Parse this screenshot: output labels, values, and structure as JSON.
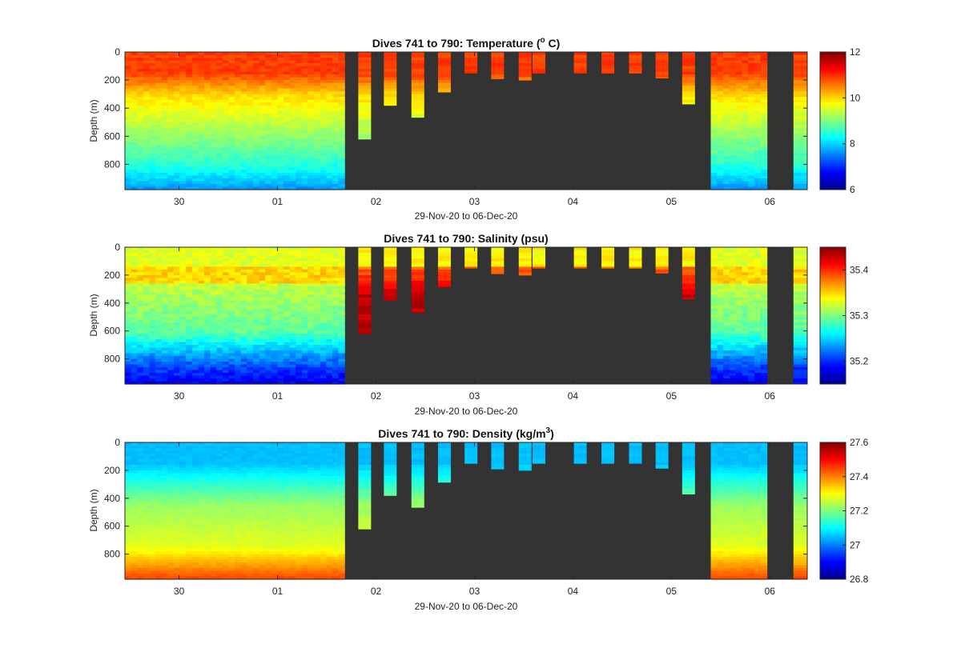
{
  "chart_data": [
    {
      "type": "heatmap",
      "variable": "temperature",
      "title": "Dives 741 to 790: Temperature (",
      "title_sup": "o",
      "title_end": " C)",
      "xlabel": "29-Nov-20 to 06-Dec-20",
      "ylabel": "Depth (m)",
      "xlim": [
        29.45,
        36.38
      ],
      "ylim": [
        0,
        980
      ],
      "x_tick_values": [
        30,
        31,
        32,
        33,
        34,
        35,
        36
      ],
      "x_tick_labels": [
        "30",
        "01",
        "02",
        "03",
        "04",
        "05",
        "06"
      ],
      "y_ticks": [
        "0",
        "200",
        "400",
        "600",
        "800"
      ],
      "y_tick_values": [
        0,
        200,
        400,
        600,
        800
      ],
      "colorbar": {
        "min": 6,
        "max": 12,
        "tick_values": [
          6,
          8,
          10,
          12
        ],
        "ticks": [
          "6",
          "8",
          "10",
          "12"
        ]
      }
    },
    {
      "type": "heatmap",
      "variable": "salinity",
      "title": "Dives 741 to 790: Salinity (psu)",
      "xlabel": "29-Nov-20 to 06-Dec-20",
      "ylabel": "Depth (m)",
      "xlim": [
        29.45,
        36.38
      ],
      "ylim": [
        0,
        980
      ],
      "x_tick_values": [
        30,
        31,
        32,
        33,
        34,
        35,
        36
      ],
      "x_tick_labels": [
        "30",
        "01",
        "02",
        "03",
        "04",
        "05",
        "06"
      ],
      "y_ticks": [
        "0",
        "200",
        "400",
        "600",
        "800"
      ],
      "y_tick_values": [
        0,
        200,
        400,
        600,
        800
      ],
      "colorbar": {
        "min": 35.15,
        "max": 35.45,
        "tick_values": [
          35.2,
          35.3,
          35.4
        ],
        "ticks": [
          "35.2",
          "35.3",
          "35.4"
        ]
      }
    },
    {
      "type": "heatmap",
      "variable": "density",
      "title": "Dives 741 to 790: Density (kg/m",
      "title_sup": "3",
      "title_end": ")",
      "xlabel": "29-Nov-20 to 06-Dec-20",
      "ylabel": "Depth (m)",
      "xlim": [
        29.45,
        36.38
      ],
      "ylim": [
        0,
        980
      ],
      "x_tick_values": [
        30,
        31,
        32,
        33,
        34,
        35,
        36
      ],
      "x_tick_labels": [
        "30",
        "01",
        "02",
        "03",
        "04",
        "05",
        "06"
      ],
      "y_ticks": [
        "0",
        "200",
        "400",
        "600",
        "800"
      ],
      "y_tick_values": [
        0,
        200,
        400,
        600,
        800
      ],
      "colorbar": {
        "min": 26.8,
        "max": 27.6,
        "tick_values": [
          26.8,
          27,
          27.2,
          27.4,
          27.6
        ],
        "ticks": [
          "26.8",
          "27",
          "27.2",
          "27.4",
          "27.6"
        ]
      }
    }
  ],
  "dives": {
    "dense_segments": [
      {
        "start": 29.45,
        "end": 31.68,
        "max_depth": 980
      },
      {
        "start": 35.4,
        "end": 35.97,
        "max_depth": 980
      }
    ],
    "shallow_profiles": [
      {
        "start": 31.82,
        "end": 31.95,
        "max_depth": 620
      },
      {
        "start": 32.08,
        "end": 32.21,
        "max_depth": 380
      },
      {
        "start": 32.36,
        "end": 32.49,
        "max_depth": 465
      },
      {
        "start": 32.63,
        "end": 32.76,
        "max_depth": 285
      },
      {
        "start": 32.9,
        "end": 33.03,
        "max_depth": 150
      },
      {
        "start": 33.17,
        "end": 33.3,
        "max_depth": 190
      },
      {
        "start": 33.45,
        "end": 33.58,
        "max_depth": 200
      },
      {
        "start": 33.59,
        "end": 33.72,
        "max_depth": 150
      },
      {
        "start": 34.01,
        "end": 34.14,
        "max_depth": 150
      },
      {
        "start": 34.29,
        "end": 34.42,
        "max_depth": 150
      },
      {
        "start": 34.57,
        "end": 34.7,
        "max_depth": 150
      },
      {
        "start": 34.84,
        "end": 34.97,
        "max_depth": 185
      },
      {
        "start": 35.11,
        "end": 35.24,
        "max_depth": 370
      },
      {
        "start": 36.24,
        "end": 36.38,
        "max_depth": 980
      }
    ]
  },
  "colors": {
    "no_data": "#333333",
    "axis": "#262626"
  }
}
